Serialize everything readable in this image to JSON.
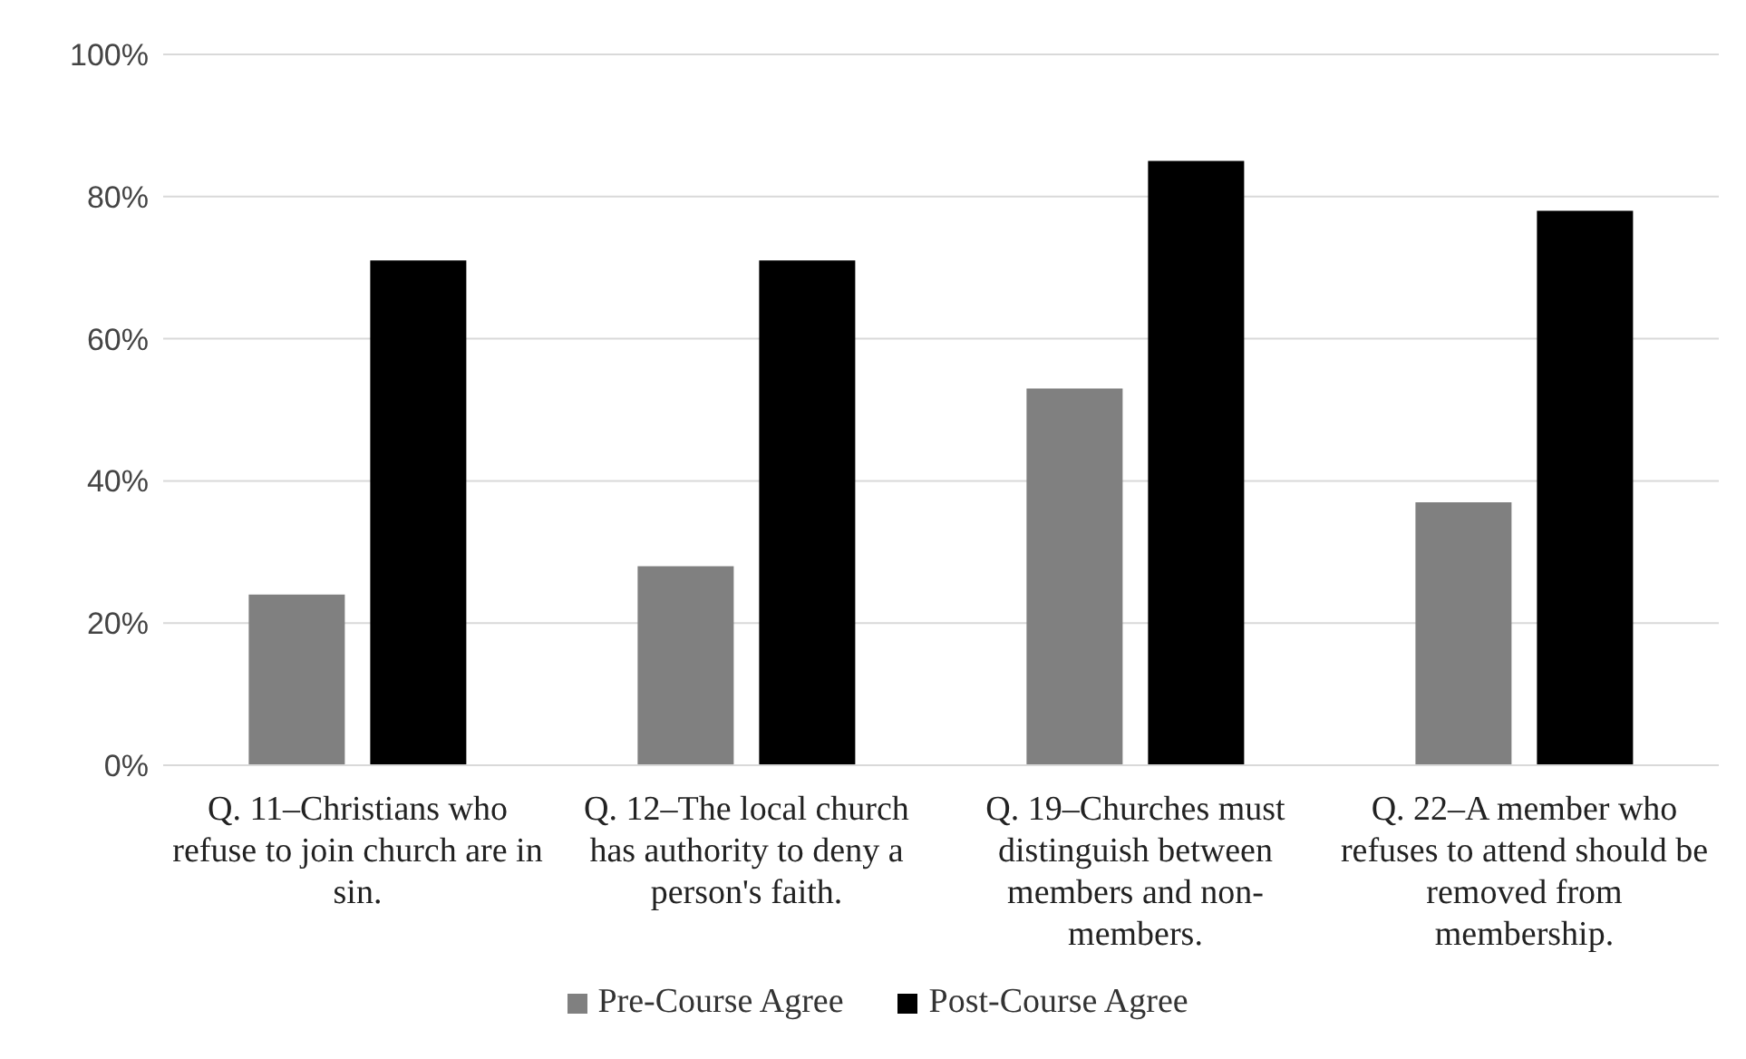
{
  "chart_data": {
    "type": "bar",
    "categories": [
      "Q. 11–Christians who refuse to join church are in sin.",
      "Q. 12–The local church has authority to deny a person's faith.",
      "Q. 19–Churches must distinguish between members and non-members.",
      "Q. 22–A member who refuses to attend should be removed from membership."
    ],
    "series": [
      {
        "name": "Pre-Course Agree",
        "color": "#808080",
        "values": [
          0.24,
          0.28,
          0.53,
          0.37
        ]
      },
      {
        "name": "Post-Course Agree",
        "color": "#000000",
        "values": [
          0.71,
          0.71,
          0.85,
          0.78
        ]
      }
    ],
    "ylim": [
      0,
      1
    ],
    "yticks": [
      {
        "value": 0,
        "label": "0%"
      },
      {
        "value": 0.2,
        "label": "20%"
      },
      {
        "value": 0.4,
        "label": "40%"
      },
      {
        "value": 0.6,
        "label": "60%"
      },
      {
        "value": 0.8,
        "label": "80%"
      },
      {
        "value": 1,
        "label": "100%"
      }
    ],
    "grid": "y",
    "legend": "bottom"
  }
}
